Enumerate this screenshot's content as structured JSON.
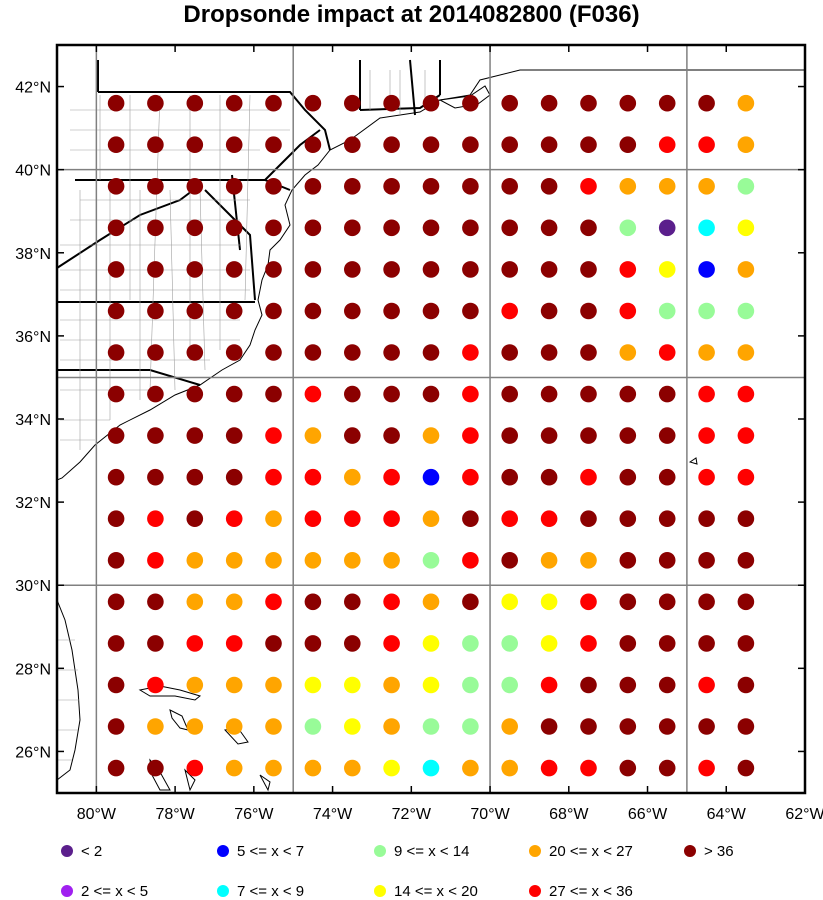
{
  "title": "Dropsonde impact at 2014082800 (F036)",
  "lat_labels": [
    "42°N",
    "40°N",
    "38°N",
    "36°N",
    "34°N",
    "32°N",
    "30°N",
    "28°N",
    "26°N"
  ],
  "lon_labels": [
    "80°W",
    "78°W",
    "76°W",
    "74°W",
    "72°W",
    "70°W",
    "68°W",
    "66°W",
    "64°W",
    "62°W"
  ],
  "legend": [
    {
      "code": "A",
      "label": "<  2",
      "color": "#5b1f8c"
    },
    {
      "code": "B",
      "label": "2 <= x <  5",
      "color": "#a020f0"
    },
    {
      "code": "C",
      "label": "5 <= x <  7",
      "color": "#0000ff"
    },
    {
      "code": "D",
      "label": "7 <= x <  9",
      "color": "#00ffff"
    },
    {
      "code": "E",
      "label": "9 <= x < 14",
      "color": "#98fb98"
    },
    {
      "code": "F",
      "label": "14 <= x < 20",
      "color": "#ffff00"
    },
    {
      "code": "G",
      "label": "20 <= x < 27",
      "color": "#ffa500"
    },
    {
      "code": "H",
      "label": "27 <= x < 36",
      "color": "#ff0000"
    },
    {
      "code": "I",
      "label": "> 36",
      "color": "#8b0000"
    }
  ],
  "chart_data": {
    "type": "scatter",
    "title": "Dropsonde impact at 2014082800 (F036)",
    "lon_range": [
      -81,
      -62
    ],
    "lat_range": [
      25,
      43
    ],
    "point_lons": [
      -79.5,
      -78.5,
      -77.5,
      -76.5,
      -75.5,
      -74.5,
      -73.5,
      -72.5,
      -71.5,
      -70.5,
      -69.5,
      -68.5,
      -67.5,
      -66.5,
      -65.5,
      -64.5,
      -63.5
    ],
    "point_lats": [
      41.6,
      40.6,
      39.6,
      38.6,
      37.6,
      36.6,
      35.6,
      34.6,
      33.6,
      32.6,
      31.6,
      30.6,
      29.6,
      28.6,
      27.6,
      26.6,
      25.6
    ],
    "category_rows": [
      "IIIIIIIIIIIIIIIIG",
      "IIIIIIIIIIIIIIHHG",
      "IIIIIIIIIIIIHGGGE",
      "IIIIIIIIIIIIIEADF",
      "IIIIIIIIIIIIIHFCG",
      "IIIIIIIIIIHIIHEEE",
      "IIIIIIIIIHIIIGHGG",
      "IIIIIHIIIHIIIIIHH",
      "IIIIHGIIGHIIIIIHH",
      "IIIIHHGHCHIIHIIHH",
      "IHIHGHHHGIHHIIIII",
      "IHGGGGGGEHIGGIIII",
      "IIGGHIIHGIFFHIIII",
      "IIHHIIIHFEEFHIIII",
      "IHGGGFFGFEEHIIIHI",
      "IGGGGEFGEEGIIIIII",
      "IIHGGGGFDGGHHIIHI"
    ]
  }
}
